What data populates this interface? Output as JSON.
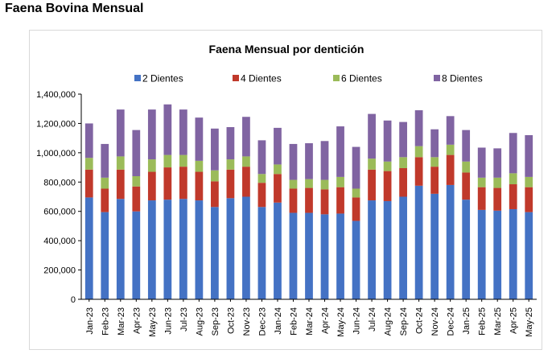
{
  "page": {
    "title": "Faena Bovina Mensual"
  },
  "chart_data": {
    "type": "bar",
    "stacked": true,
    "title": "Faena Mensual por dentición",
    "xlabel": "",
    "ylabel": "",
    "ylim": [
      0,
      1400000
    ],
    "y_ticks": [
      0,
      200000,
      400000,
      600000,
      800000,
      1000000,
      1200000,
      1400000
    ],
    "y_tick_labels": [
      "0",
      "200,000",
      "400,000",
      "600,000",
      "800,000",
      "1,000,000",
      "1,200,000",
      "1,400,000"
    ],
    "grid": false,
    "legend_position": "top",
    "categories": [
      "Jan-23",
      "Feb-23",
      "Mar-23",
      "Apr-23",
      "May-23",
      "Jun-23",
      "Jul-23",
      "Aug-23",
      "Sep-23",
      "Oct-23",
      "Nov-23",
      "Dec-23",
      "Jan-24",
      "Feb-24",
      "Mar-24",
      "Apr-24",
      "May-24",
      "Jun-24",
      "Jul-24",
      "Aug-24",
      "Sep-24",
      "Oct-24",
      "Nov-24",
      "Dec-24",
      "Jan-25",
      "Feb-25",
      "Mar-25",
      "Apr-25",
      "May-25"
    ],
    "series": [
      {
        "name": "2 Dientes",
        "color": "#4472c4",
        "values": [
          695000,
          595000,
          685000,
          600000,
          675000,
          680000,
          685000,
          675000,
          630000,
          690000,
          700000,
          630000,
          660000,
          590000,
          590000,
          580000,
          585000,
          535000,
          675000,
          670000,
          700000,
          775000,
          720000,
          780000,
          680000,
          610000,
          605000,
          615000,
          595000
        ]
      },
      {
        "name": "4 Dientes",
        "color": "#c0392b",
        "values": [
          190000,
          160000,
          200000,
          170000,
          195000,
          220000,
          220000,
          195000,
          175000,
          195000,
          205000,
          165000,
          195000,
          165000,
          170000,
          170000,
          180000,
          160000,
          210000,
          205000,
          195000,
          195000,
          185000,
          205000,
          185000,
          155000,
          155000,
          170000,
          170000
        ]
      },
      {
        "name": "6 Dientes",
        "color": "#9bbb59",
        "values": [
          80000,
          75000,
          90000,
          70000,
          85000,
          85000,
          80000,
          75000,
          75000,
          70000,
          70000,
          60000,
          65000,
          60000,
          60000,
          65000,
          70000,
          60000,
          75000,
          65000,
          75000,
          75000,
          65000,
          70000,
          75000,
          65000,
          70000,
          75000,
          70000
        ]
      },
      {
        "name": "8 Dientes",
        "color": "#8064a2",
        "values": [
          235000,
          230000,
          320000,
          315000,
          340000,
          345000,
          310000,
          295000,
          285000,
          220000,
          270000,
          230000,
          250000,
          245000,
          245000,
          265000,
          345000,
          285000,
          305000,
          280000,
          240000,
          245000,
          190000,
          195000,
          215000,
          205000,
          200000,
          275000,
          285000
        ]
      }
    ]
  }
}
